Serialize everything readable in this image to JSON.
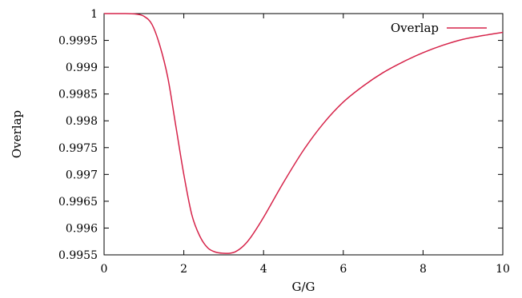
{
  "chart_data": {
    "type": "line",
    "xlabel": "G/G",
    "ylabel": "Overlap",
    "xlim": [
      0,
      10
    ],
    "ylim": [
      0.9955,
      1.0
    ],
    "x_ticks": [
      0,
      2,
      4,
      6,
      8,
      10
    ],
    "x_tick_labels": [
      "0",
      "2",
      "4",
      "6",
      "8",
      "10"
    ],
    "y_ticks": [
      0.9955,
      0.996,
      0.9965,
      0.997,
      0.9975,
      0.998,
      0.9985,
      0.999,
      0.9995,
      1.0
    ],
    "y_tick_labels": [
      "0.9955",
      "0.996",
      "0.9965",
      "0.997",
      "0.9975",
      "0.998",
      "0.9985",
      "0.999",
      "0.9995",
      "1"
    ],
    "grid": false,
    "legend_position": "top-right",
    "series": [
      {
        "name": "Overlap",
        "color": "#d6244a",
        "x": [
          0,
          0.5,
          0.8,
          1.0,
          1.2,
          1.4,
          1.6,
          1.8,
          2.0,
          2.2,
          2.4,
          2.6,
          2.8,
          3.0,
          3.15,
          3.3,
          3.5,
          3.7,
          4.0,
          4.5,
          5.0,
          5.5,
          6.0,
          6.5,
          7.0,
          7.5,
          8.0,
          8.5,
          9.0,
          9.5,
          10.0
        ],
        "y": [
          1.0,
          1.0,
          0.99999,
          0.99995,
          0.9998,
          0.9994,
          0.9988,
          0.9979,
          0.997,
          0.99625,
          0.99585,
          0.99563,
          0.99555,
          0.99553,
          0.99553,
          0.99556,
          0.99567,
          0.99585,
          0.9962,
          0.99685,
          0.99745,
          0.99795,
          0.99835,
          0.99865,
          0.9989,
          0.9991,
          0.99927,
          0.99941,
          0.99952,
          0.99959,
          0.99965
        ]
      }
    ]
  }
}
